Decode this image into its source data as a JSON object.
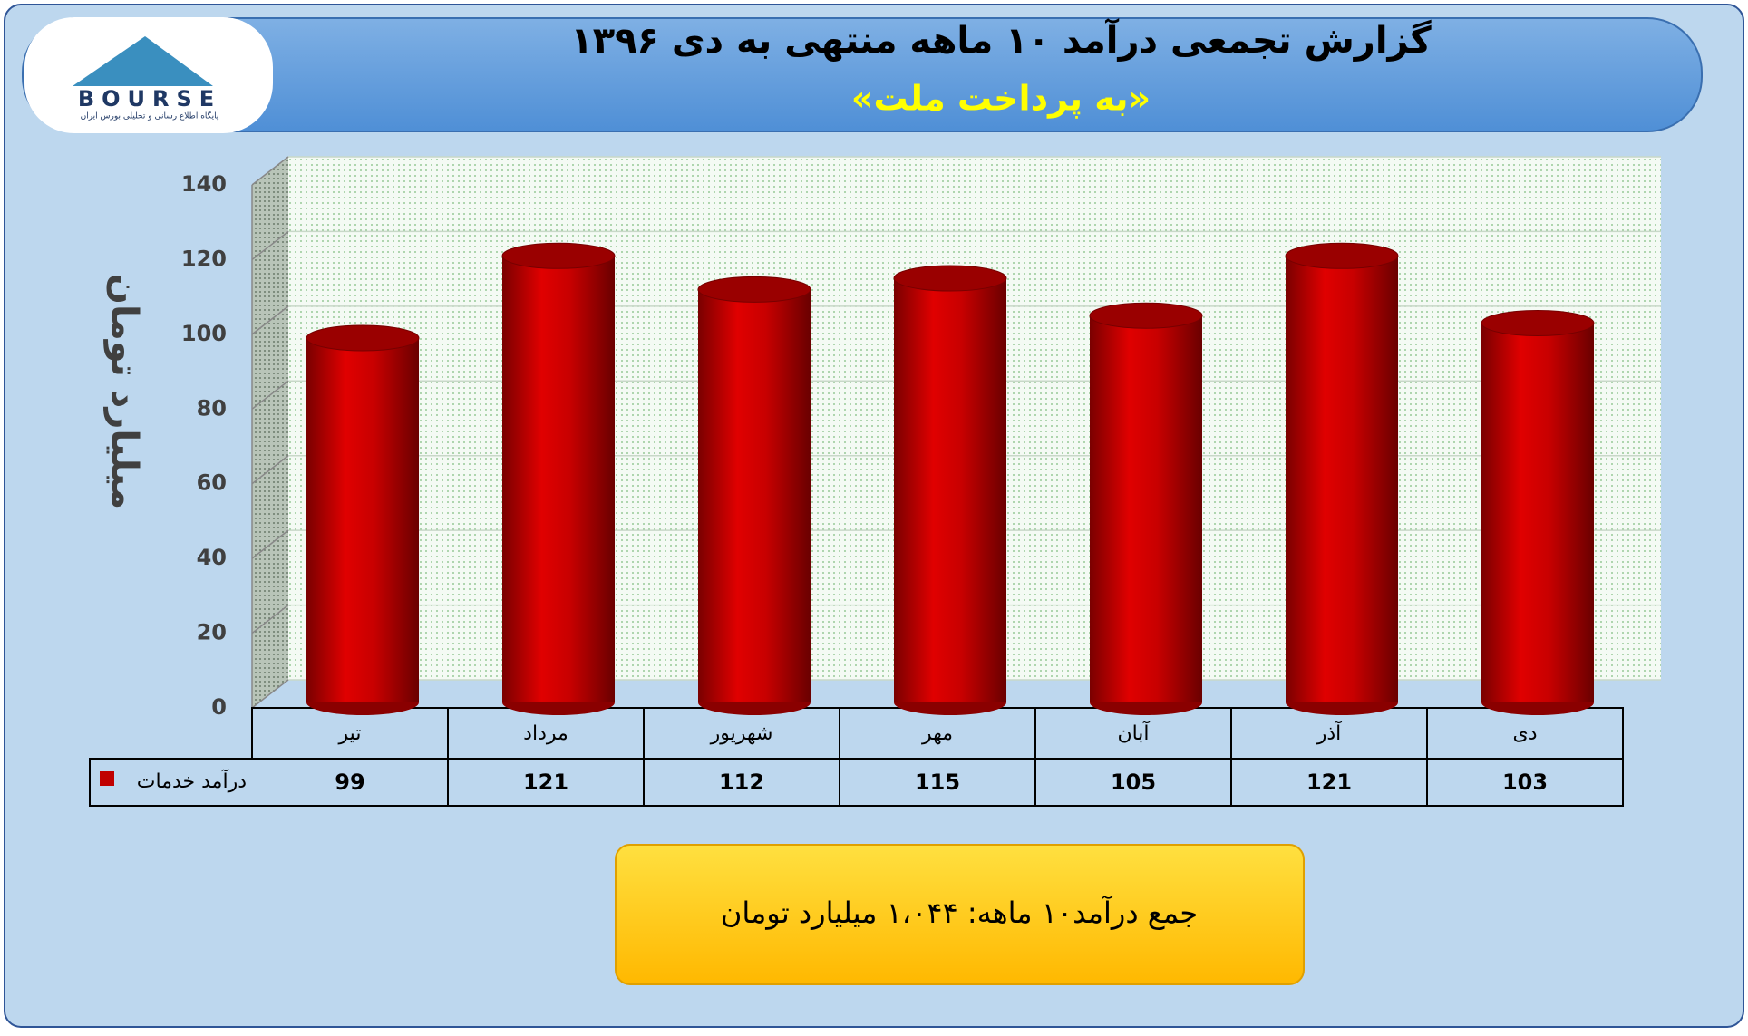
{
  "logo": {
    "name": "BOURSE",
    "tagline": "پایگاه اطلاع رسانی و تحلیلی بورس ایران"
  },
  "chart_data": {
    "type": "bar",
    "title": "گزارش تجمعی درآمد ۱۰ ماهه منتهی به دی ۱۳۹۶",
    "subtitle": "«به پرداخت ملت»",
    "y_label": "میلیارد تومان",
    "categories": [
      "تیر",
      "مرداد",
      "شهریور",
      "مهر",
      "آبان",
      "آذر",
      "دی"
    ],
    "series": [
      {
        "name": "درآمد خدمات",
        "color": "#c00000",
        "values": [
          99,
          121,
          112,
          115,
          105,
          121,
          103
        ]
      }
    ],
    "ylim": [
      0,
      140
    ],
    "yticks": [
      0,
      20,
      40,
      60,
      80,
      100,
      120,
      140
    ],
    "grid": true,
    "annotation": "جمع درآمد۱۰ ماهه: ۱،۰۴۴ میلیارد تومان"
  }
}
